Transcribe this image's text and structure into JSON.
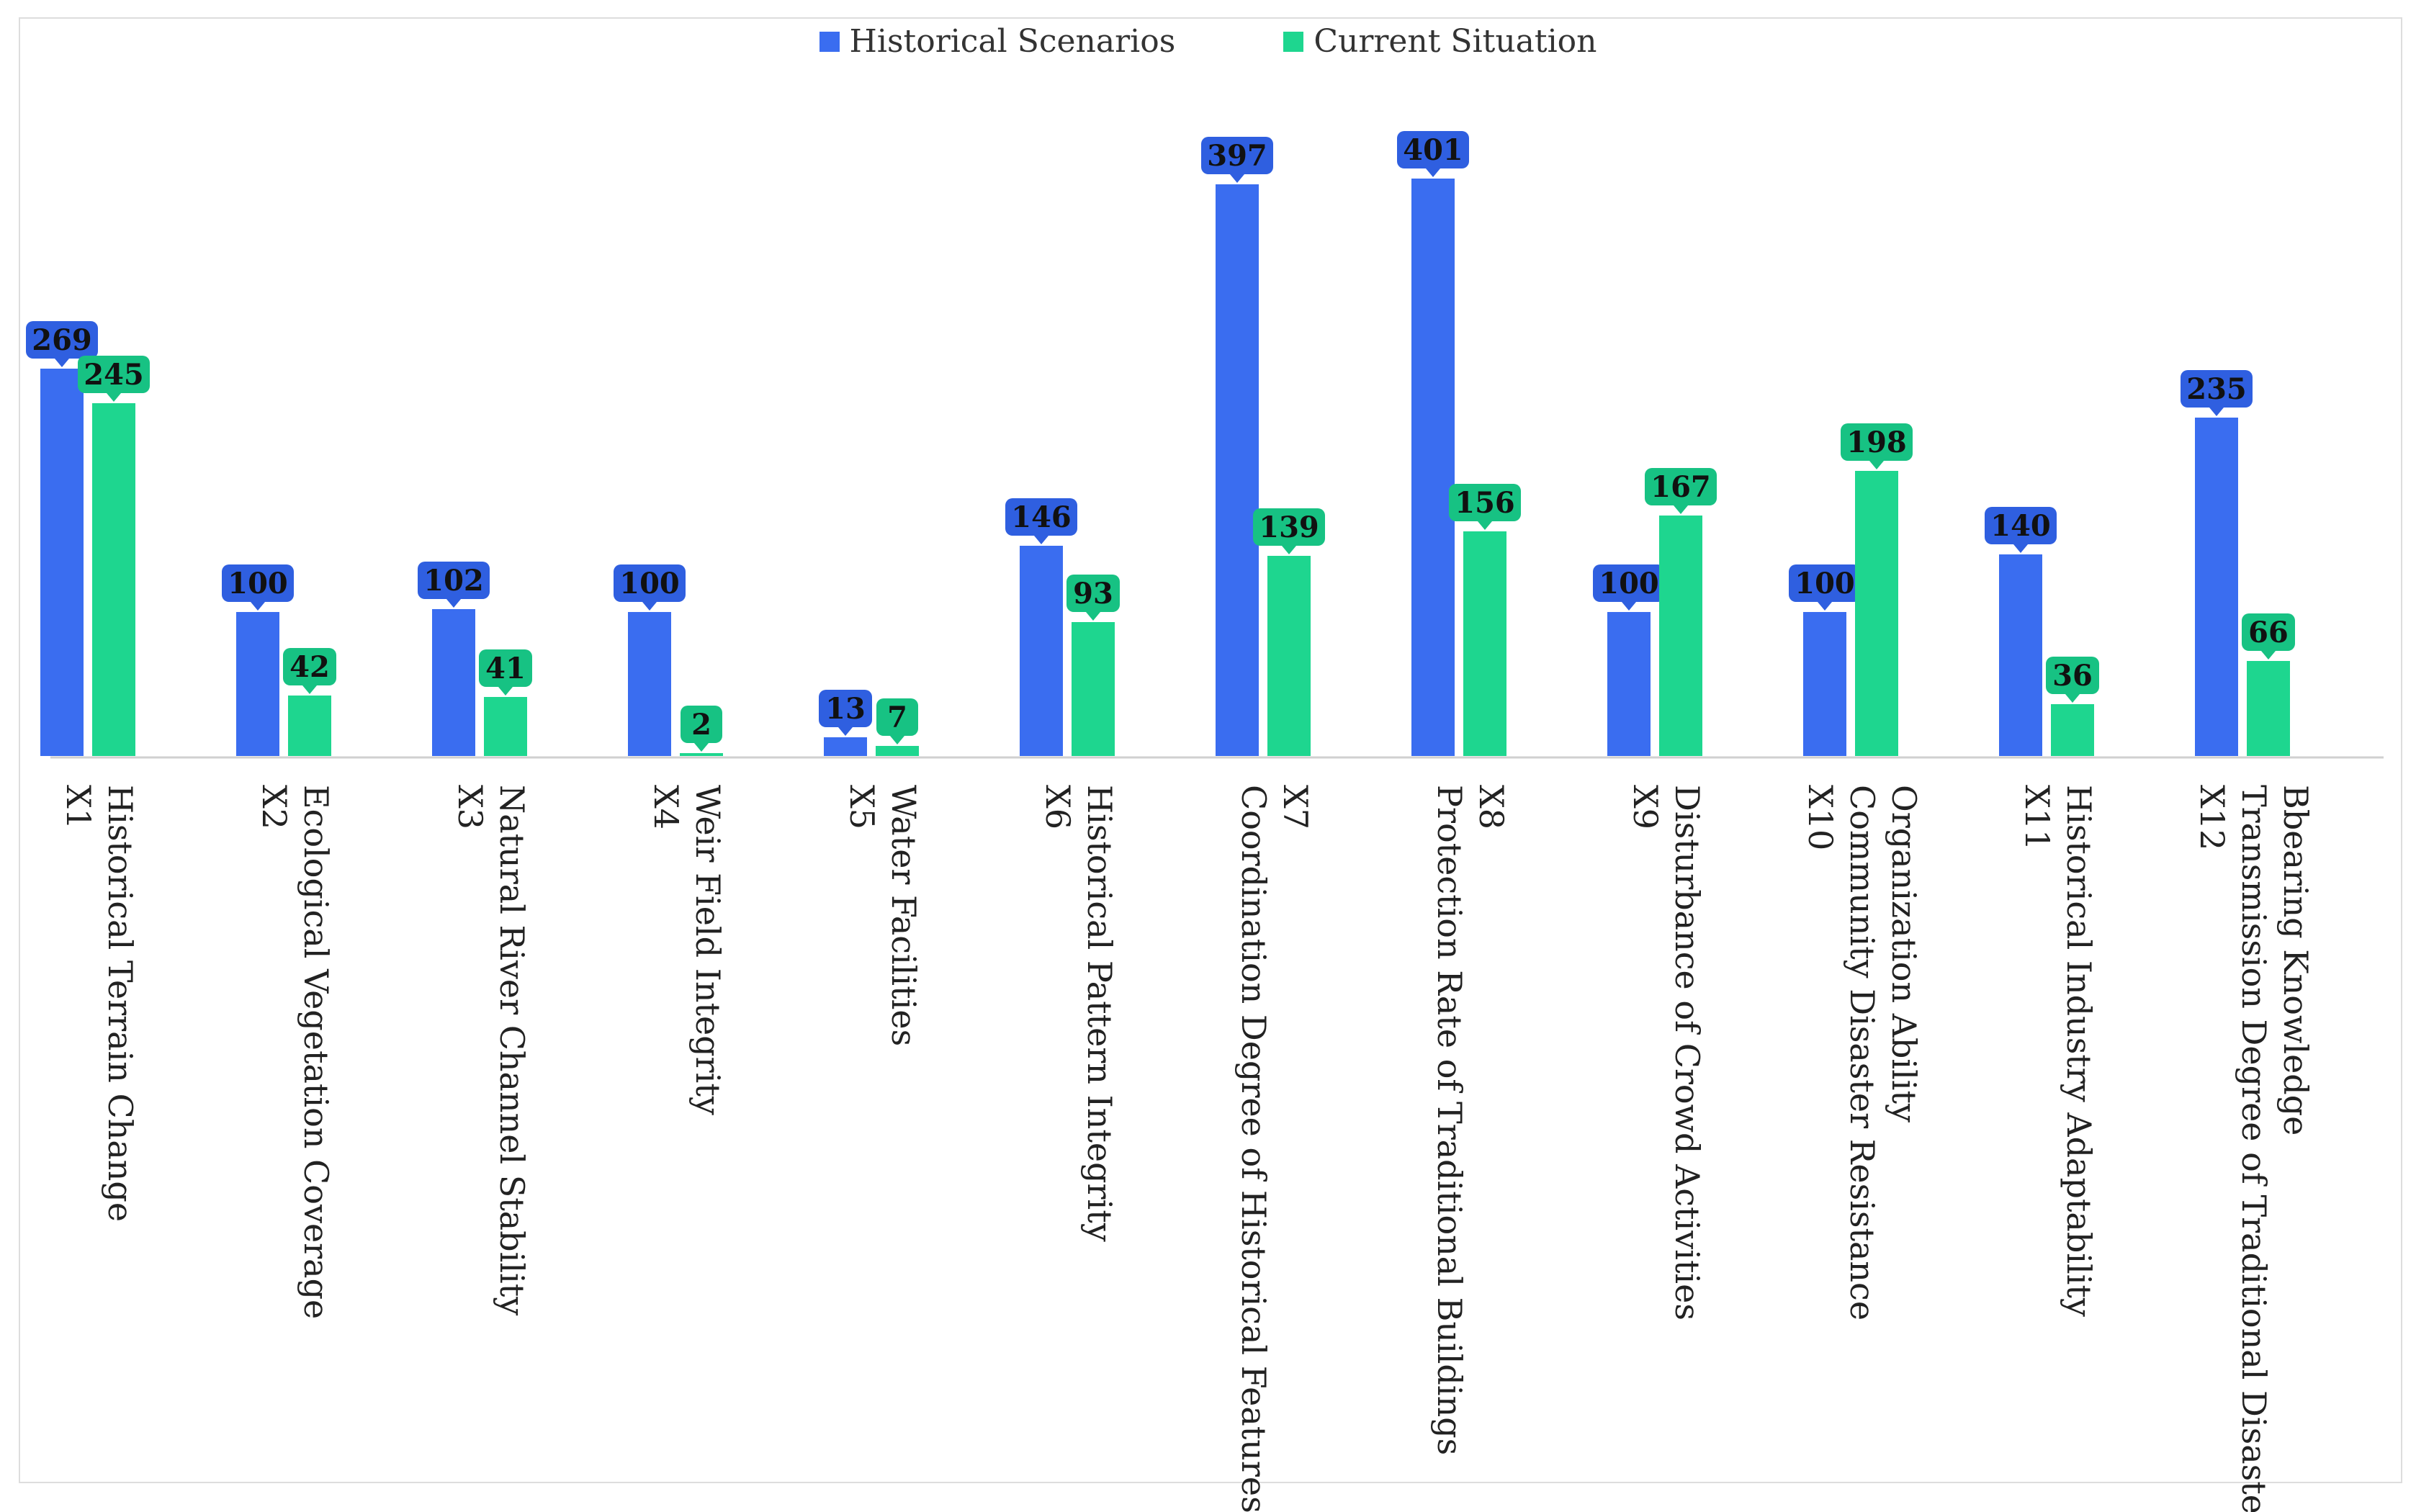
{
  "chart_data": {
    "type": "bar",
    "title": "",
    "xlabel": "",
    "ylabel": "",
    "ylim": [
      0,
      450
    ],
    "grid": false,
    "legend_position": "top-center",
    "categories": [
      [
        "Historical Terrain Change",
        "X1"
      ],
      [
        "Ecological Vegetation Coverage",
        "X2"
      ],
      [
        "Natural River Channel Stability",
        "X3"
      ],
      [
        "Weir Field Integrity",
        "X4"
      ],
      [
        "Water Facilities",
        "X5"
      ],
      [
        "Historical Pattern Integrity",
        "X6"
      ],
      [
        "X7",
        "Coordination Degree of Historical Features"
      ],
      [
        "X8",
        "Protection Rate of Traditional Buildings"
      ],
      [
        "Disturbance of Crowd Activities",
        "X9"
      ],
      [
        "Organization Ability",
        "Community Disaster Resistance",
        "X10"
      ],
      [
        "Historical Industry Adaptability",
        "X11"
      ],
      [
        "Bbearing Knowledge",
        "Transmission Degree of Traditional Disaster",
        "X12"
      ]
    ],
    "series": [
      {
        "name": "Historical Scenarios",
        "color": "#3a6df0",
        "values": [
          269,
          100,
          102,
          100,
          13,
          146,
          397,
          401,
          100,
          100,
          140,
          235
        ]
      },
      {
        "name": "Current Situation",
        "color": "#1ed68f",
        "values": [
          245,
          42,
          41,
          2,
          7,
          93,
          139,
          156,
          167,
          198,
          36,
          66
        ]
      }
    ]
  }
}
